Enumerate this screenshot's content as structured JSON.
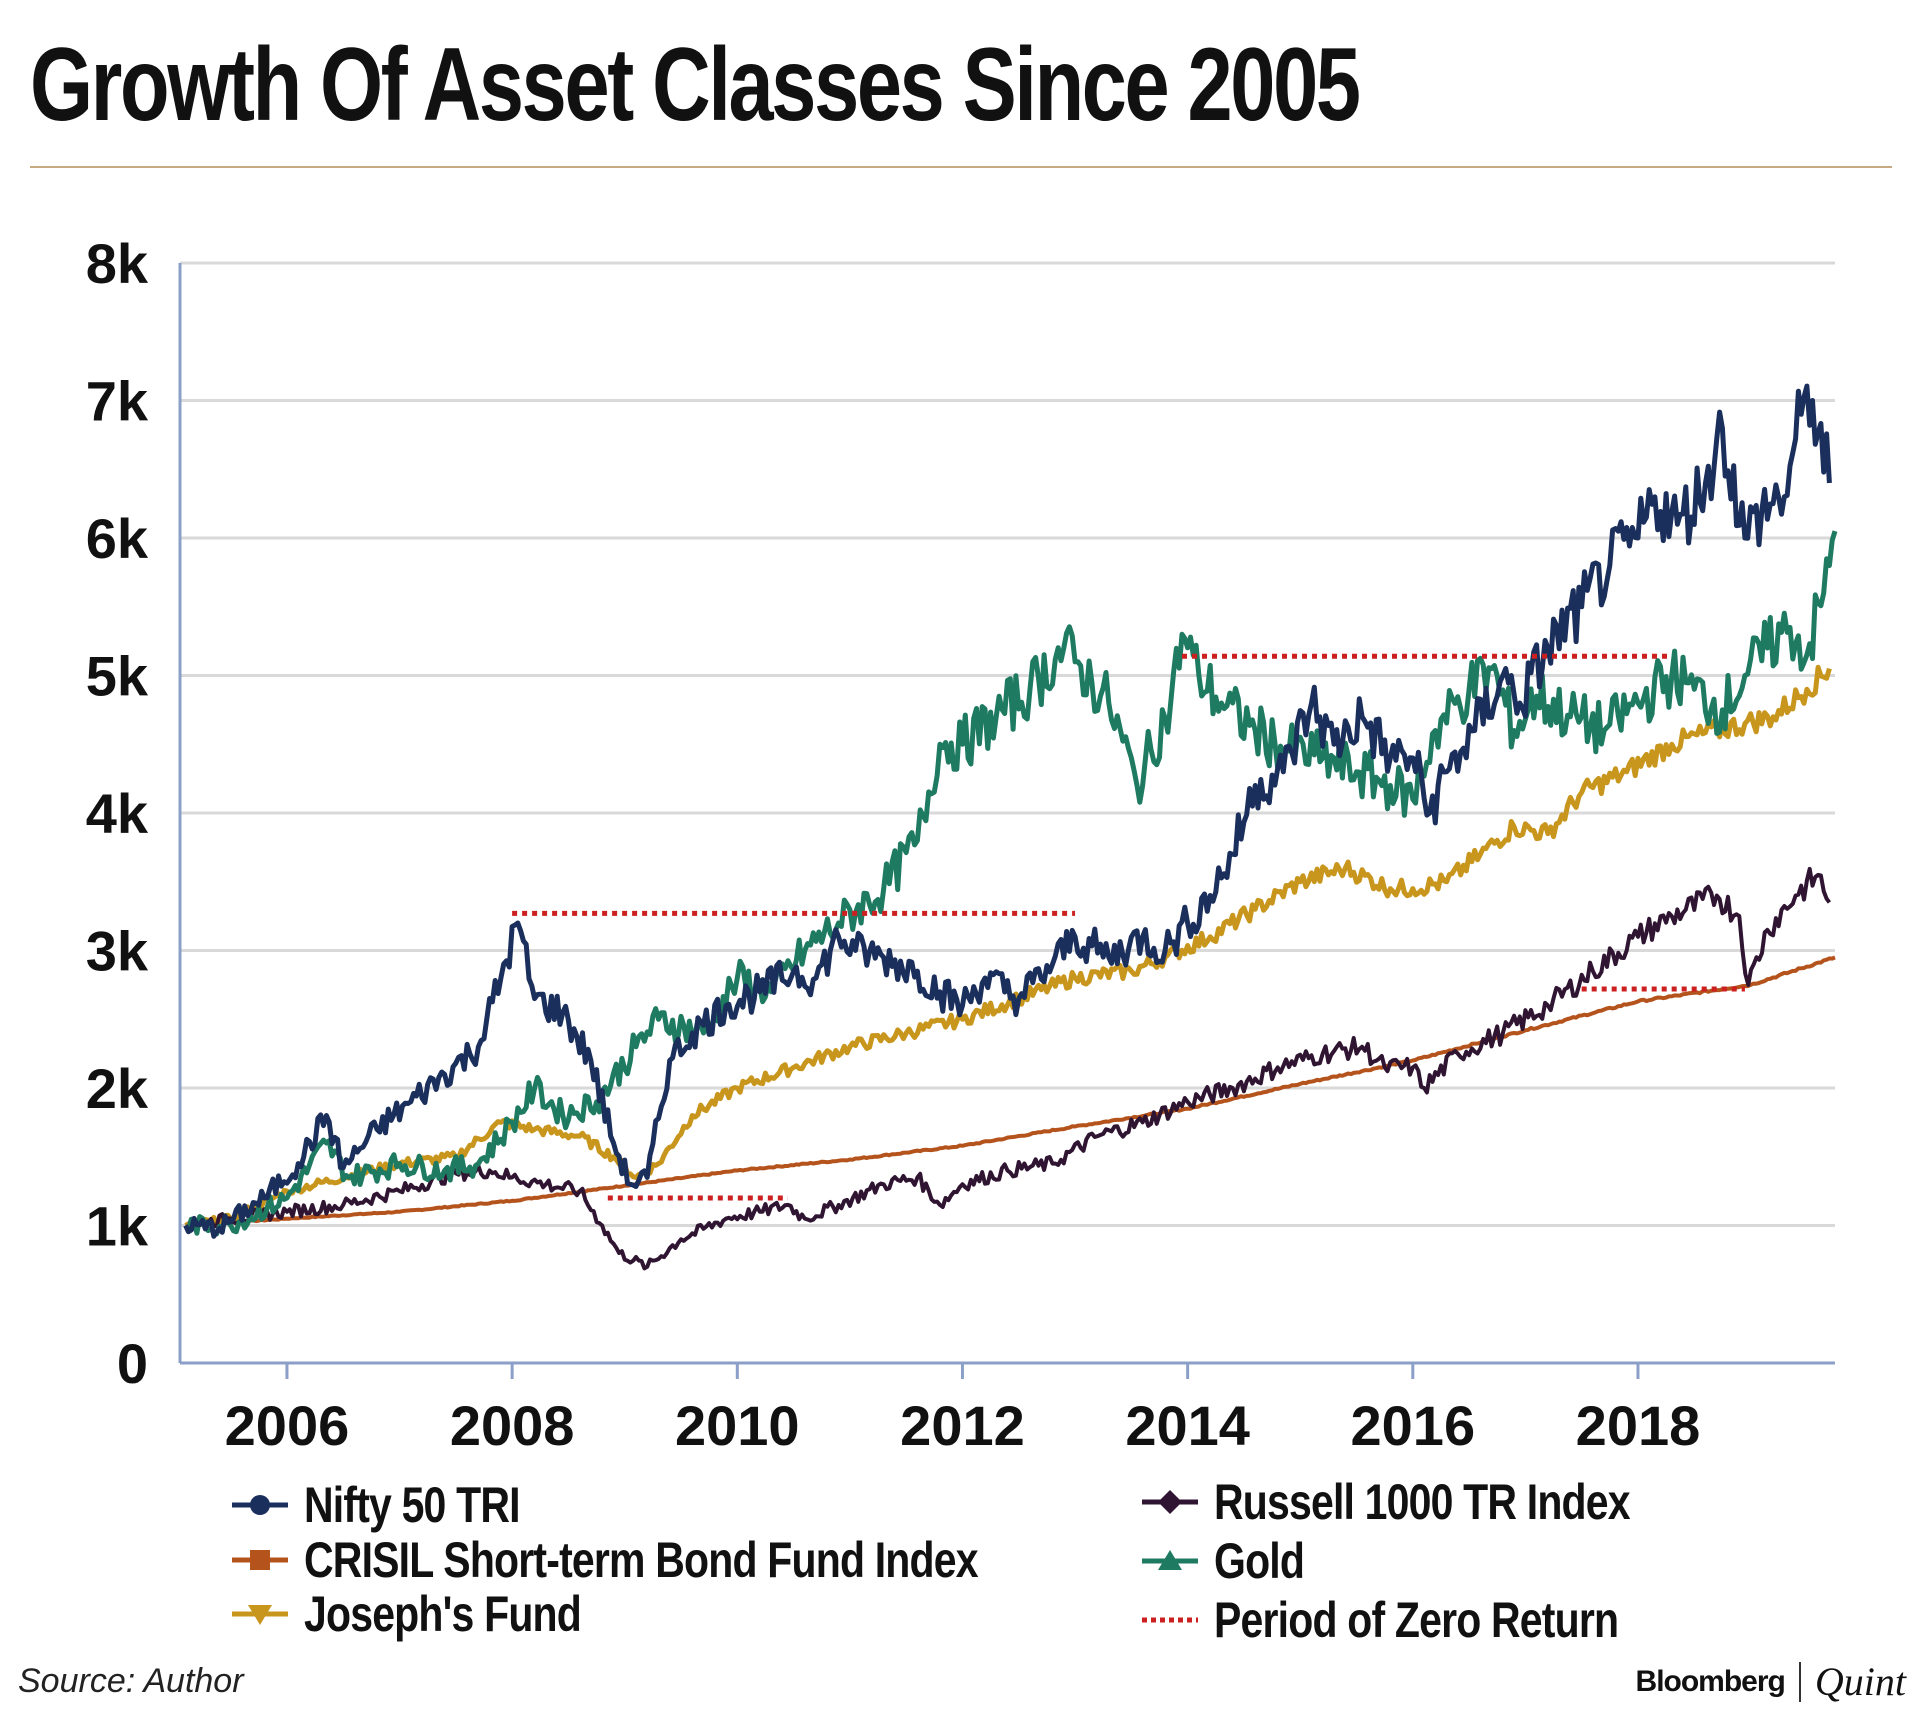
{
  "header": {
    "title": "Growth Of Asset Classes Since 2005"
  },
  "footer": {
    "source": "Source: Author",
    "brand_left": "Bloomberg",
    "brand_right": "Quint"
  },
  "colors": {
    "grid": "#d9d9d9",
    "axis": "#8b9fc9",
    "rule": "#c9a982"
  },
  "chart_data": {
    "type": "line",
    "title": "Growth Of Asset Classes Since 2005",
    "xlabel": "",
    "ylabel": "",
    "xlim": [
      2005.05,
      2019.75
    ],
    "ylim": [
      0,
      8000
    ],
    "x_ticks": [
      2006,
      2008,
      2010,
      2012,
      2014,
      2016,
      2018
    ],
    "x_tick_labels": [
      "2006",
      "2008",
      "2010",
      "2012",
      "2014",
      "2016",
      "2018"
    ],
    "y_ticks": [
      0,
      1000,
      2000,
      3000,
      4000,
      5000,
      6000,
      7000,
      8000
    ],
    "y_tick_labels": [
      "0",
      "1k",
      "2k",
      "3k",
      "4k",
      "5k",
      "6k",
      "7k",
      "8k"
    ],
    "grid": true,
    "legend_position": "bottom",
    "series": [
      {
        "name": "Nifty 50 TRI",
        "color": "#1b2f5c",
        "marker": "circle",
        "width": 5,
        "points": [
          [
            2005.1,
            1000
          ],
          [
            2005.4,
            980
          ],
          [
            2005.8,
            1200
          ],
          [
            2006.1,
            1450
          ],
          [
            2006.35,
            1800
          ],
          [
            2006.5,
            1420
          ],
          [
            2006.8,
            1700
          ],
          [
            2007.1,
            1900
          ],
          [
            2007.4,
            2100
          ],
          [
            2007.7,
            2300
          ],
          [
            2007.9,
            2800
          ],
          [
            2008.05,
            3200
          ],
          [
            2008.2,
            2650
          ],
          [
            2008.45,
            2550
          ],
          [
            2008.7,
            2200
          ],
          [
            2008.9,
            1600
          ],
          [
            2009.05,
            1300
          ],
          [
            2009.2,
            1350
          ],
          [
            2009.4,
            2200
          ],
          [
            2009.6,
            2400
          ],
          [
            2009.9,
            2600
          ],
          [
            2010.2,
            2700
          ],
          [
            2010.5,
            2850
          ],
          [
            2010.7,
            2800
          ],
          [
            2010.9,
            3100
          ],
          [
            2011.05,
            3000
          ],
          [
            2011.3,
            2950
          ],
          [
            2011.6,
            2850
          ],
          [
            2011.8,
            2700
          ],
          [
            2012.0,
            2600
          ],
          [
            2012.2,
            2800
          ],
          [
            2012.5,
            2650
          ],
          [
            2012.8,
            2900
          ],
          [
            2013.0,
            3100
          ],
          [
            2013.3,
            2950
          ],
          [
            2013.6,
            3100
          ],
          [
            2013.8,
            3000
          ],
          [
            2014.0,
            3200
          ],
          [
            2014.2,
            3400
          ],
          [
            2014.4,
            3700
          ],
          [
            2014.6,
            4200
          ],
          [
            2014.85,
            4300
          ],
          [
            2015.1,
            4800
          ],
          [
            2015.3,
            4500
          ],
          [
            2015.55,
            4700
          ],
          [
            2015.8,
            4400
          ],
          [
            2016.0,
            4400
          ],
          [
            2016.15,
            4000
          ],
          [
            2016.3,
            4300
          ],
          [
            2016.55,
            4600
          ],
          [
            2016.8,
            5000
          ],
          [
            2016.95,
            4800
          ],
          [
            2017.2,
            5200
          ],
          [
            2017.5,
            5500
          ],
          [
            2017.75,
            5800
          ],
          [
            2018.0,
            6000
          ],
          [
            2018.15,
            6300
          ],
          [
            2018.35,
            6100
          ],
          [
            2018.6,
            6400
          ],
          [
            2018.75,
            6800
          ],
          [
            2018.95,
            6000
          ],
          [
            2019.1,
            6200
          ],
          [
            2019.3,
            6300
          ],
          [
            2019.45,
            6900
          ],
          [
            2019.55,
            7000
          ],
          [
            2019.7,
            6400
          ]
        ]
      },
      {
        "name": "CRISIL Short-term Bond Fund Index",
        "color": "#b5531d",
        "marker": "square",
        "width": 4,
        "points": [
          [
            2005.1,
            1000
          ],
          [
            2006.0,
            1050
          ],
          [
            2007.0,
            1100
          ],
          [
            2008.0,
            1180
          ],
          [
            2009.0,
            1290
          ],
          [
            2010.0,
            1400
          ],
          [
            2011.0,
            1480
          ],
          [
            2012.0,
            1580
          ],
          [
            2013.0,
            1720
          ],
          [
            2014.0,
            1850
          ],
          [
            2015.0,
            2030
          ],
          [
            2016.0,
            2200
          ],
          [
            2017.0,
            2420
          ],
          [
            2018.0,
            2630
          ],
          [
            2019.0,
            2750
          ],
          [
            2019.75,
            2950
          ]
        ]
      },
      {
        "name": "Joseph's Fund",
        "color": "#c8961c",
        "marker": "triangle-down",
        "width": 5,
        "points": [
          [
            2005.1,
            1000
          ],
          [
            2005.5,
            1050
          ],
          [
            2006.0,
            1250
          ],
          [
            2006.5,
            1350
          ],
          [
            2007.0,
            1450
          ],
          [
            2007.5,
            1500
          ],
          [
            2007.9,
            1750
          ],
          [
            2008.2,
            1700
          ],
          [
            2008.6,
            1650
          ],
          [
            2008.9,
            1500
          ],
          [
            2009.1,
            1350
          ],
          [
            2009.3,
            1450
          ],
          [
            2009.6,
            1800
          ],
          [
            2010.0,
            2000
          ],
          [
            2010.5,
            2150
          ],
          [
            2011.0,
            2300
          ],
          [
            2011.5,
            2400
          ],
          [
            2012.0,
            2500
          ],
          [
            2012.5,
            2650
          ],
          [
            2013.0,
            2800
          ],
          [
            2013.5,
            2850
          ],
          [
            2013.8,
            2950
          ],
          [
            2014.2,
            3100
          ],
          [
            2014.6,
            3300
          ],
          [
            2015.0,
            3500
          ],
          [
            2015.4,
            3600
          ],
          [
            2015.8,
            3450
          ],
          [
            2016.0,
            3450
          ],
          [
            2016.3,
            3500
          ],
          [
            2016.6,
            3700
          ],
          [
            2016.9,
            3900
          ],
          [
            2017.2,
            3850
          ],
          [
            2017.5,
            4150
          ],
          [
            2017.9,
            4300
          ],
          [
            2018.3,
            4500
          ],
          [
            2018.7,
            4600
          ],
          [
            2018.95,
            4650
          ],
          [
            2019.2,
            4700
          ],
          [
            2019.5,
            4900
          ],
          [
            2019.7,
            5050
          ]
        ]
      },
      {
        "name": "Russell 1000 TR Index",
        "color": "#2f1532",
        "marker": "diamond",
        "width": 4,
        "points": [
          [
            2005.1,
            1000
          ],
          [
            2005.5,
            1050
          ],
          [
            2006.0,
            1100
          ],
          [
            2006.5,
            1150
          ],
          [
            2007.0,
            1250
          ],
          [
            2007.5,
            1380
          ],
          [
            2007.8,
            1400
          ],
          [
            2008.0,
            1350
          ],
          [
            2008.3,
            1300
          ],
          [
            2008.6,
            1250
          ],
          [
            2008.8,
            1000
          ],
          [
            2008.95,
            800
          ],
          [
            2009.2,
            700
          ],
          [
            2009.5,
            900
          ],
          [
            2009.9,
            1050
          ],
          [
            2010.2,
            1100
          ],
          [
            2010.45,
            1150
          ],
          [
            2010.6,
            1050
          ],
          [
            2010.9,
            1150
          ],
          [
            2011.3,
            1300
          ],
          [
            2011.6,
            1350
          ],
          [
            2011.8,
            1150
          ],
          [
            2012.0,
            1300
          ],
          [
            2012.4,
            1400
          ],
          [
            2012.8,
            1450
          ],
          [
            2013.2,
            1650
          ],
          [
            2013.6,
            1750
          ],
          [
            2014.0,
            1900
          ],
          [
            2014.4,
            2000
          ],
          [
            2014.8,
            2150
          ],
          [
            2015.2,
            2250
          ],
          [
            2015.55,
            2300
          ],
          [
            2015.75,
            2150
          ],
          [
            2016.0,
            2150
          ],
          [
            2016.1,
            2000
          ],
          [
            2016.4,
            2250
          ],
          [
            2016.8,
            2400
          ],
          [
            2017.2,
            2600
          ],
          [
            2017.6,
            2850
          ],
          [
            2018.0,
            3100
          ],
          [
            2018.3,
            3250
          ],
          [
            2018.7,
            3400
          ],
          [
            2018.9,
            3250
          ],
          [
            2018.98,
            2750
          ],
          [
            2019.15,
            3150
          ],
          [
            2019.4,
            3400
          ],
          [
            2019.6,
            3550
          ],
          [
            2019.7,
            3350
          ]
        ]
      },
      {
        "name": "Gold",
        "color": "#1e7a60",
        "marker": "triangle-up",
        "width": 5,
        "points": [
          [
            2005.1,
            1000
          ],
          [
            2005.5,
            1000
          ],
          [
            2006.0,
            1200
          ],
          [
            2006.35,
            1600
          ],
          [
            2006.55,
            1350
          ],
          [
            2007.0,
            1450
          ],
          [
            2007.4,
            1400
          ],
          [
            2007.7,
            1450
          ],
          [
            2008.0,
            1750
          ],
          [
            2008.2,
            2000
          ],
          [
            2008.45,
            1800
          ],
          [
            2008.75,
            1900
          ],
          [
            2009.1,
            2300
          ],
          [
            2009.3,
            2500
          ],
          [
            2009.7,
            2400
          ],
          [
            2010.0,
            2800
          ],
          [
            2010.3,
            2700
          ],
          [
            2010.6,
            3000
          ],
          [
            2010.9,
            3200
          ],
          [
            2011.3,
            3450
          ],
          [
            2011.6,
            3800
          ],
          [
            2011.8,
            4500
          ],
          [
            2012.0,
            4500
          ],
          [
            2012.3,
            4700
          ],
          [
            2012.6,
            4900
          ],
          [
            2012.9,
            5200
          ],
          [
            2013.0,
            5100
          ],
          [
            2013.3,
            4800
          ],
          [
            2013.55,
            4200
          ],
          [
            2013.85,
            4800
          ],
          [
            2013.95,
            5300
          ],
          [
            2014.1,
            5000
          ],
          [
            2014.3,
            4800
          ],
          [
            2014.6,
            4600
          ],
          [
            2014.9,
            4450
          ],
          [
            2015.2,
            4400
          ],
          [
            2015.5,
            4300
          ],
          [
            2015.8,
            4200
          ],
          [
            2016.0,
            4100
          ],
          [
            2016.2,
            4600
          ],
          [
            2016.5,
            4900
          ],
          [
            2016.7,
            5050
          ],
          [
            2016.9,
            4600
          ],
          [
            2017.1,
            4850
          ],
          [
            2017.4,
            4700
          ],
          [
            2017.7,
            4600
          ],
          [
            2018.0,
            4800
          ],
          [
            2018.3,
            5000
          ],
          [
            2018.5,
            4900
          ],
          [
            2018.75,
            4750
          ],
          [
            2018.95,
            5000
          ],
          [
            2019.15,
            5200
          ],
          [
            2019.35,
            5350
          ],
          [
            2019.5,
            5150
          ],
          [
            2019.65,
            5600
          ],
          [
            2019.75,
            6050
          ]
        ]
      }
    ],
    "zero_return_periods": {
      "name": "Period of Zero Return",
      "color": "#cc1f1f",
      "segments": [
        {
          "x_start": 2008.0,
          "x_end": 2013.0,
          "y": 3270
        },
        {
          "x_start": 2008.85,
          "x_end": 2010.45,
          "y": 1200
        },
        {
          "x_start": 2013.95,
          "x_end": 2018.3,
          "y": 5140
        },
        {
          "x_start": 2017.5,
          "x_end": 2018.95,
          "y": 2720
        }
      ]
    }
  },
  "legend": {
    "left": [
      {
        "label": "Nifty 50 TRI",
        "marker": "circle",
        "color": "#1b2f5c"
      },
      {
        "label": "CRISIL Short-term Bond Fund Index",
        "marker": "square",
        "color": "#b5531d"
      },
      {
        "label": "Joseph's Fund",
        "marker": "triangle-down",
        "color": "#c8961c"
      }
    ],
    "right": [
      {
        "label": "Russell 1000 TR Index",
        "marker": "diamond",
        "color": "#2f1532"
      },
      {
        "label": "Gold",
        "marker": "triangle-up",
        "color": "#1e7a60"
      },
      {
        "label": "Period of Zero Return",
        "marker": "dotted",
        "color": "#cc1f1f"
      }
    ]
  }
}
